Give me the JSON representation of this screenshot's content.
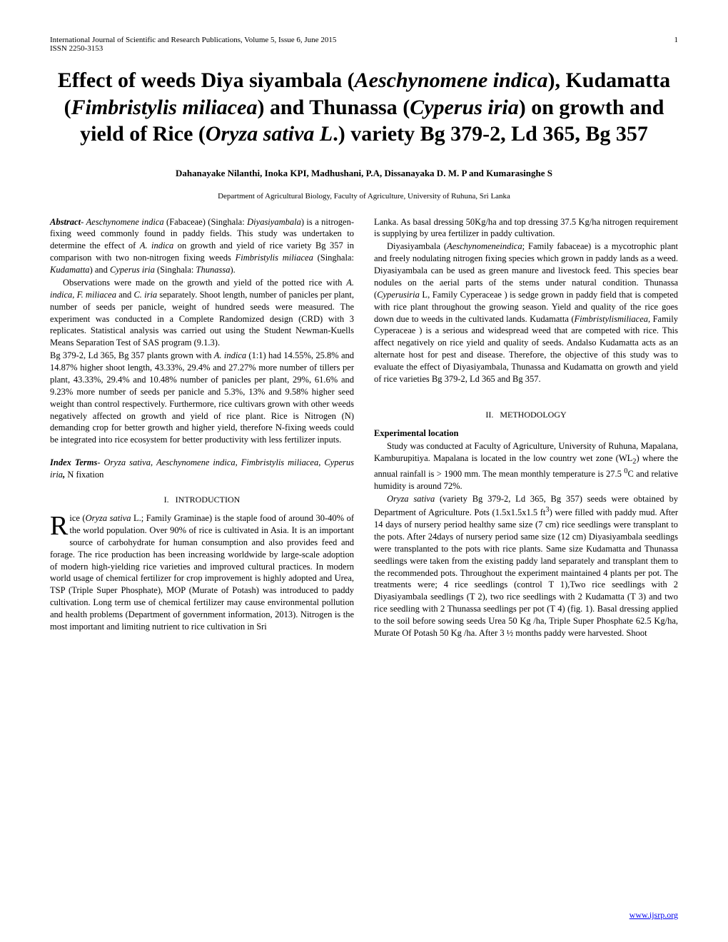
{
  "header": {
    "journal": "International Journal of Scientific and Research Publications, Volume 5, Issue 6, June 2015",
    "page_number": "1",
    "issn": "ISSN 2250-3153"
  },
  "title": {
    "line1_a": "Effect of weeds Diya siyambala (",
    "line1_b": "Aeschynomene indica",
    "line1_c": "),",
    "line2_a": "Kudamatta (",
    "line2_b": "Fimbristylis miliacea",
    "line2_c": ") and Thunassa",
    "line3_a": "(",
    "line3_b": "Cyperus iria",
    "line3_c": ") on growth and yield of Rice (",
    "line3_d": "Oryza sativa",
    "line4_a": "L",
    "line4_b": ".) variety Bg 379-2, Ld 365, Bg 357"
  },
  "authors": "Dahanayake Nilanthi,   Inoka KPI, Madhushani, P.A, Dissanayaka D. M. P and Kumarasinghe S",
  "affiliation": "Department of Agricultural Biology, Faculty of Agriculture, University of Ruhuna, Sri Lanka",
  "left_column": {
    "abstract_label": "Abstract",
    "abstract_dash": "- ",
    "abstract_sp1_i": "Aeschynomene indica",
    "abstract_sp1_t": " (Fabaceae) (Singhala: ",
    "abstract_sp2_i": "Diyasiyambala",
    "abstract_p1": ") is a nitrogen-fixing weed commonly found in paddy fields. This study was undertaken to determine the effect of ",
    "abstract_sp3_i": "A. indica",
    "abstract_p2": " on growth and yield of rice variety Bg 357 in comparison with two non-nitrogen fixing weeds ",
    "abstract_sp4_i": "Fimbristylis miliacea",
    "abstract_p3": " (Singhala: ",
    "abstract_sp5_i": "Kudamatta",
    "abstract_p4": ") and ",
    "abstract_sp6_i": "Cyperus iria",
    "abstract_p5": " (Singhala: ",
    "abstract_sp7_i": "Thunassa",
    "abstract_p6": ").",
    "obs_p1": "Observations were made on the growth and yield of the potted rice with ",
    "obs_sp1": "A. indica, F. miliacea",
    "obs_p2": " and ",
    "obs_sp2": "C. iria",
    "obs_p3": " separately. Shoot length, number of panicles per plant, number of seeds per panicle, weight of hundred seeds were measured. The experiment was conducted in a Complete Randomized design (CRD) with 3 replicates. Statistical analysis was carried out using the Student Newman-Kuells Means Separation Test of SAS program (9.1.3).",
    "results_p1": "Bg 379-2, Ld 365, Bg 357 plants grown with ",
    "results_sp1": "A. indica",
    "results_p2": " (1:1) had 14.55%, 25.8% and 14.87% higher shoot length, 43.33%, 29.4% and 27.27% more number of tillers per plant, 43.33%, 29.4% and 10.48% number of panicles per plant, 29%, 61.6% and 9.23% more  number of seeds per panicle and 5.3%, 13% and 9.58% higher seed weight than control respectively. Furthermore, rice cultivars grown with other weeds negatively affected on growth and yield of rice plant. Rice is Nitrogen (N) demanding crop for better growth and higher yield, therefore N-fixing weeds could be integrated into rice ecosystem for better productivity with less fertilizer inputs.",
    "index_label": "Index Terms",
    "index_dash": "- ",
    "index_sp1": "Oryza sativa",
    "index_c1": ", ",
    "index_sp2": "Aeschynomene indica, Fimbristylis miliacea",
    "index_c2": ", ",
    "index_sp3": "Cyperus iria",
    "index_sp4": ",",
    "index_t": " N fixation",
    "section1_num": "I.",
    "section1_title": "INTRODUCTION",
    "intro_dropcap": "R",
    "intro_p1a": "ice (",
    "intro_sp1": "Oryza sativa",
    "intro_p1b": " L.; Family Graminae)   is the staple food of around 30-40% of the world population. Over 90% of rice is cultivated in Asia. It is an important source of carbohydrate for human consumption and also provides feed and forage. The rice production has been increasing worldwide by large-scale adoption of modern high-yielding rice varieties and improved cultural practices. In modern world usage of chemical fertilizer for crop improvement is highly adopted and Urea, TSP (Triple Super Phosphate), MOP (Murate of Potash) was introduced to paddy cultivation. Long term use of chemical fertilizer may cause environmental pollution and health problems (Department of government information, 2013). Nitrogen is the most important and limiting nutrient to rice cultivation in Sri"
  },
  "right_column": {
    "cont_p1": "Lanka. As basal dressing 50Kg/ha and top dressing 37.5 Kg/ha nitrogen requirement is supplying by urea fertilizer in paddy cultivation.",
    "p2_a": "Diyasiyambala (",
    "p2_sp1": "Aeschynomeneindica",
    "p2_b": "; Family fabaceae) is a mycotrophic plant and freely nodulating nitrogen fixing species which grown in paddy lands as a weed. Diyasiyambala can be used as green manure and livestock feed. This species bear nodules on the aerial parts of the stems under natural condition. Thunassa (",
    "p2_sp2": "Cyperusiria",
    "p2_c": " L, Family Cyperaceae ) is sedge grown in paddy field that is competed with rice plant throughout the growing season. Yield and quality of the rice goes down due to weeds in the cultivated lands. Kudamatta (",
    "p2_sp3": "Fimbristylismiliacea,",
    "p2_d": " Family Cyperaceae ) is a serious and  widespread weed that are competed with rice. This affect negatively on rice yield and quality of seeds. Andalso Kudamatta acts as an alternate host for pest and disease. Therefore, the objective of this study was to evaluate the effect of Diyasiyambala, Thunassa and Kudamatta on growth and yield of rice varieties Bg 379-2, Ld 365 and Bg 357.",
    "section2_num": "II.",
    "section2_title": "METHODOLOGY",
    "subheading": "Experimental location",
    "method_p1a": "Study was conducted at Faculty of Agriculture, University of Ruhuna, Mapalana, Kamburupitiya. Mapalana is located in the low country wet zone (WL",
    "method_sub1": "2",
    "method_p1b": ") where the annual rainfall is > 1900 mm. The mean monthly temperature is 27.5 ",
    "method_sup1": "0",
    "method_p1c": "C and relative humidity is around 72%.",
    "method_p2sp": "Oryza sativa",
    "method_p2a": " (variety Bg 379-2, Ld 365, Bg 357) seeds were obtained by Department of Agriculture. Pots (1.5x1.5x1.5 ft",
    "method_sup2": "3",
    "method_p2b": ") were filled with paddy mud. After 14 days of nursery period healthy same size (7 cm) rice seedlings were transplant to the pots. After 24days of nursery period same size (12 cm) Diyasiyambala seedlings were transplanted to the pots with rice plants. Same size    Kudamatta and Thunassa seedlings were taken from the existing paddy land separately and transplant them to the recommended pots. Throughout the experiment maintained 4 plants per pot. The treatments were; 4 rice seedlings (control T 1),Two rice seedlings with 2 Diyasiyambala seedlings (T 2), two rice seedlings with 2 Kudamatta (T 3) and two rice seedling with 2 Thunassa seedlings  per pot (T 4) (fig. 1). Basal dressing applied to the soil before sowing seeds Urea 50 Kg /ha, Triple Super Phosphate  62.5 Kg/ha, Murate Of Potash 50 Kg /ha. After 3 ½ months paddy were harvested. Shoot"
  },
  "footer_link": "www.ijsrp.org"
}
